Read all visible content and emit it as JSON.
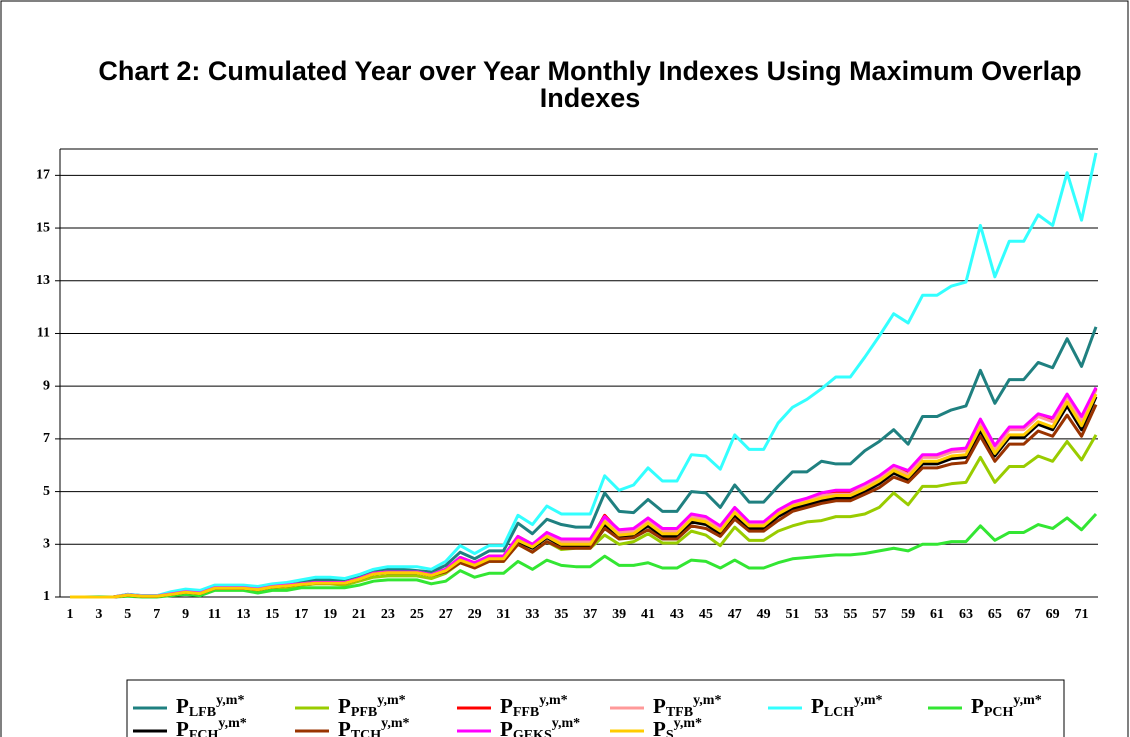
{
  "chart_data": {
    "type": "line",
    "title": "Chart 2: Cumulated Year over Year Monthly Indexes Using Maximum Overlap Indexes",
    "categories": [
      1,
      null,
      3,
      null,
      5,
      null,
      7,
      null,
      9,
      null,
      11,
      null,
      13,
      null,
      15,
      null,
      17,
      null,
      19,
      null,
      21,
      null,
      23,
      null,
      25,
      null,
      27,
      null,
      29,
      null,
      31,
      null,
      33,
      null,
      35,
      null,
      37,
      null,
      39,
      null,
      41,
      null,
      43,
      null,
      45,
      null,
      47,
      null,
      49,
      null,
      51,
      null,
      53,
      null,
      55,
      null,
      57,
      null,
      59,
      null,
      61,
      null,
      63,
      null,
      65,
      null,
      67,
      null,
      69,
      null,
      71,
      null
    ],
    "ylim": [
      1,
      18
    ],
    "yticks": [
      1,
      3,
      5,
      7,
      9,
      11,
      13,
      15,
      17
    ],
    "grid": true,
    "series": [
      {
        "name": "P",
        "subscript": "LFB",
        "superscript": "y,m*",
        "color": "#1f8080",
        "values": [
          1,
          1,
          1,
          1,
          1.1,
          1.05,
          1.05,
          1.15,
          1.25,
          1.2,
          1.4,
          1.4,
          1.4,
          1.35,
          1.45,
          1.5,
          1.6,
          1.65,
          1.65,
          1.6,
          1.75,
          1.95,
          2.05,
          2.05,
          2.0,
          1.95,
          2.2,
          2.7,
          2.45,
          2.75,
          2.75,
          3.8,
          3.4,
          3.95,
          3.75,
          3.65,
          3.65,
          4.95,
          4.25,
          4.2,
          4.7,
          4.25,
          4.25,
          5.0,
          4.95,
          4.4,
          5.25,
          4.6,
          4.6,
          5.2,
          5.75,
          5.75,
          6.15,
          6.05,
          6.05,
          6.55,
          6.9,
          7.35,
          6.8,
          7.85,
          7.85,
          8.1,
          8.25,
          9.6,
          8.35,
          9.25,
          9.25,
          9.9,
          9.7,
          10.8,
          9.75,
          11.25
        ]
      },
      {
        "name": "P",
        "subscript": "PFB",
        "superscript": "y,m*",
        "color": "#99cc00",
        "values": [
          1,
          1,
          1,
          1,
          1.05,
          1.02,
          1.02,
          1.1,
          1.15,
          1.1,
          1.3,
          1.3,
          1.3,
          1.2,
          1.3,
          1.35,
          1.45,
          1.5,
          1.5,
          1.45,
          1.6,
          1.75,
          1.8,
          1.8,
          1.8,
          1.7,
          1.9,
          2.3,
          2.1,
          2.35,
          2.35,
          3.0,
          2.7,
          3.1,
          2.8,
          2.85,
          2.85,
          3.35,
          3.0,
          3.1,
          3.4,
          3.05,
          3.05,
          3.5,
          3.35,
          2.95,
          3.65,
          3.15,
          3.15,
          3.5,
          3.7,
          3.85,
          3.9,
          4.05,
          4.05,
          4.15,
          4.4,
          4.95,
          4.5,
          5.2,
          5.2,
          5.3,
          5.35,
          6.3,
          5.35,
          5.95,
          5.95,
          6.35,
          6.15,
          6.9,
          6.2,
          7.15
        ]
      },
      {
        "name": "P",
        "subscript": "FFB",
        "superscript": "y,m*",
        "color": "#ff0000",
        "values": [
          1,
          1,
          1,
          1,
          1.08,
          1.04,
          1.04,
          1.12,
          1.2,
          1.15,
          1.35,
          1.35,
          1.35,
          1.3,
          1.4,
          1.45,
          1.5,
          1.55,
          1.55,
          1.55,
          1.7,
          1.9,
          1.95,
          1.95,
          1.95,
          1.85,
          2.05,
          2.5,
          2.3,
          2.55,
          2.55,
          3.3,
          3.0,
          3.4,
          3.15,
          3.15,
          3.15,
          4.1,
          3.5,
          3.55,
          3.95,
          3.55,
          3.55,
          4.1,
          4.0,
          3.65,
          4.35,
          3.8,
          3.8,
          4.25,
          4.55,
          4.7,
          4.9,
          4.95,
          4.95,
          5.25,
          5.55,
          5.95,
          5.7,
          6.35,
          6.35,
          6.55,
          6.6,
          7.7,
          6.65,
          7.4,
          7.4,
          7.9,
          7.7,
          8.65,
          7.75,
          8.9
        ]
      },
      {
        "name": "P",
        "subscript": "TFB",
        "superscript": "y,m*",
        "color": "#ff9999",
        "values": [
          1,
          1,
          1,
          1,
          1.08,
          1.04,
          1.04,
          1.12,
          1.2,
          1.15,
          1.35,
          1.35,
          1.35,
          1.3,
          1.4,
          1.45,
          1.5,
          1.55,
          1.55,
          1.55,
          1.7,
          1.9,
          1.95,
          1.95,
          1.95,
          1.85,
          2.05,
          2.45,
          2.25,
          2.5,
          2.5,
          3.25,
          2.95,
          3.35,
          3.1,
          3.1,
          3.1,
          4.0,
          3.45,
          3.5,
          3.9,
          3.5,
          3.5,
          4.05,
          3.95,
          3.6,
          4.3,
          3.75,
          3.75,
          4.2,
          4.5,
          4.65,
          4.85,
          4.9,
          4.9,
          5.2,
          5.5,
          5.9,
          5.65,
          6.3,
          6.3,
          6.5,
          6.55,
          7.6,
          6.6,
          7.35,
          7.35,
          7.85,
          7.65,
          8.6,
          7.7,
          8.85
        ]
      },
      {
        "name": "P",
        "subscript": "LCH",
        "superscript": "y,m*",
        "color": "#33ffff",
        "values": [
          1,
          1,
          1.02,
          1,
          1.1,
          1.05,
          1.05,
          1.2,
          1.3,
          1.25,
          1.45,
          1.45,
          1.45,
          1.4,
          1.5,
          1.55,
          1.65,
          1.75,
          1.75,
          1.7,
          1.85,
          2.05,
          2.15,
          2.15,
          2.15,
          2.05,
          2.35,
          2.95,
          2.65,
          2.95,
          2.95,
          4.1,
          3.75,
          4.45,
          4.15,
          4.15,
          4.15,
          5.6,
          5.05,
          5.25,
          5.9,
          5.4,
          5.4,
          6.4,
          6.35,
          5.85,
          7.15,
          6.6,
          6.6,
          7.6,
          8.2,
          8.5,
          8.9,
          9.35,
          9.35,
          10.1,
          10.9,
          11.75,
          11.4,
          12.45,
          12.45,
          12.8,
          12.95,
          15.1,
          13.15,
          14.5,
          14.5,
          15.5,
          15.1,
          17.1,
          15.3,
          17.85
        ]
      },
      {
        "name": "P",
        "subscript": "PCH",
        "superscript": "y,m*",
        "color": "#33e633",
        "values": [
          1,
          1,
          1,
          1,
          1.03,
          1,
          1,
          1.05,
          1.1,
          1.05,
          1.25,
          1.25,
          1.25,
          1.15,
          1.25,
          1.25,
          1.35,
          1.35,
          1.35,
          1.35,
          1.45,
          1.6,
          1.65,
          1.65,
          1.65,
          1.5,
          1.6,
          2.0,
          1.75,
          1.9,
          1.9,
          2.35,
          2.05,
          2.4,
          2.2,
          2.15,
          2.15,
          2.55,
          2.2,
          2.2,
          2.3,
          2.1,
          2.1,
          2.4,
          2.35,
          2.1,
          2.4,
          2.1,
          2.1,
          2.3,
          2.45,
          2.5,
          2.55,
          2.6,
          2.6,
          2.65,
          2.75,
          2.85,
          2.75,
          3.0,
          3.0,
          3.1,
          3.1,
          3.7,
          3.15,
          3.45,
          3.45,
          3.75,
          3.6,
          4.0,
          3.55,
          4.15
        ]
      },
      {
        "name": "P",
        "subscript": "FCH",
        "superscript": "y,m*",
        "color": "#000000",
        "values": [
          1,
          1,
          1,
          1,
          1.07,
          1.03,
          1.03,
          1.1,
          1.18,
          1.13,
          1.33,
          1.33,
          1.33,
          1.28,
          1.38,
          1.42,
          1.48,
          1.52,
          1.52,
          1.52,
          1.67,
          1.87,
          1.92,
          1.92,
          1.92,
          1.82,
          1.98,
          2.38,
          2.18,
          2.42,
          2.42,
          3.1,
          2.85,
          3.25,
          2.95,
          2.95,
          2.95,
          3.75,
          3.3,
          3.35,
          3.7,
          3.3,
          3.3,
          3.85,
          3.75,
          3.4,
          4.1,
          3.6,
          3.6,
          4.05,
          4.35,
          4.5,
          4.65,
          4.75,
          4.75,
          5.0,
          5.3,
          5.7,
          5.45,
          6.05,
          6.05,
          6.25,
          6.3,
          7.3,
          6.35,
          7.05,
          7.05,
          7.55,
          7.35,
          8.25,
          7.35,
          8.6
        ]
      },
      {
        "name": "P",
        "subscript": "TCH",
        "superscript": "y,m*",
        "color": "#993300",
        "values": [
          1,
          1,
          1,
          1,
          1.07,
          1.03,
          1.03,
          1.1,
          1.18,
          1.13,
          1.33,
          1.33,
          1.33,
          1.28,
          1.38,
          1.42,
          1.48,
          1.52,
          1.52,
          1.52,
          1.67,
          1.87,
          1.92,
          1.92,
          1.92,
          1.82,
          1.95,
          2.3,
          2.1,
          2.35,
          2.35,
          3.0,
          2.7,
          3.1,
          2.85,
          2.85,
          2.85,
          3.6,
          3.2,
          3.25,
          3.55,
          3.2,
          3.2,
          3.7,
          3.6,
          3.3,
          3.95,
          3.5,
          3.5,
          3.9,
          4.25,
          4.4,
          4.55,
          4.65,
          4.65,
          4.9,
          5.15,
          5.55,
          5.35,
          5.9,
          5.9,
          6.05,
          6.1,
          7.1,
          6.15,
          6.8,
          6.8,
          7.3,
          7.1,
          7.9,
          7.1,
          8.3
        ]
      },
      {
        "name": "P",
        "subscript": "GEKS",
        "superscript": "y,m*",
        "color": "#ff00ff",
        "values": [
          1,
          1,
          1,
          1,
          1.08,
          1.04,
          1.04,
          1.12,
          1.2,
          1.15,
          1.35,
          1.35,
          1.35,
          1.3,
          1.4,
          1.45,
          1.5,
          1.55,
          1.55,
          1.55,
          1.7,
          1.9,
          1.95,
          1.95,
          1.95,
          1.85,
          2.05,
          2.5,
          2.3,
          2.55,
          2.55,
          3.3,
          3.0,
          3.45,
          3.2,
          3.2,
          3.2,
          4.05,
          3.55,
          3.6,
          4.0,
          3.6,
          3.6,
          4.15,
          4.05,
          3.7,
          4.4,
          3.85,
          3.85,
          4.3,
          4.6,
          4.75,
          4.95,
          5.05,
          5.05,
          5.3,
          5.6,
          6.0,
          5.8,
          6.4,
          6.4,
          6.6,
          6.65,
          7.75,
          6.75,
          7.45,
          7.45,
          7.95,
          7.8,
          8.7,
          7.85,
          8.95
        ]
      },
      {
        "name": "P",
        "subscript": "S",
        "superscript": "y,m*",
        "color": "#ffcc00",
        "values": [
          1,
          1,
          1,
          1,
          1.07,
          1.03,
          1.03,
          1.1,
          1.18,
          1.13,
          1.33,
          1.33,
          1.33,
          1.28,
          1.38,
          1.42,
          1.48,
          1.52,
          1.52,
          1.52,
          1.67,
          1.87,
          1.92,
          1.92,
          1.92,
          1.82,
          2.0,
          2.4,
          2.2,
          2.45,
          2.45,
          3.15,
          2.9,
          3.3,
          3.0,
          3.0,
          3.0,
          3.85,
          3.35,
          3.4,
          3.8,
          3.4,
          3.4,
          3.95,
          3.85,
          3.5,
          4.2,
          3.7,
          3.7,
          4.15,
          4.45,
          4.6,
          4.75,
          4.85,
          4.85,
          5.1,
          5.4,
          5.8,
          5.55,
          6.15,
          6.15,
          6.35,
          6.4,
          7.45,
          6.45,
          7.15,
          7.15,
          7.65,
          7.45,
          8.4,
          7.5,
          8.7
        ]
      }
    ]
  }
}
